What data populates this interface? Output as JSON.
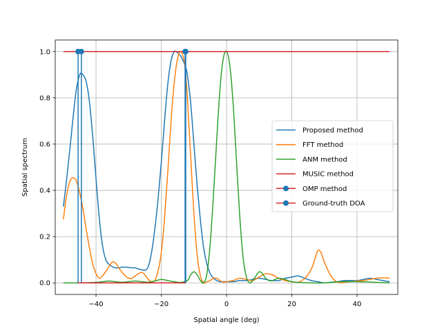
{
  "chart_data": {
    "type": "line",
    "title": "",
    "xlabel": "Spatial angle (deg)",
    "ylabel": "Spatial spectrum",
    "xlim": [
      -52.5,
      52.5
    ],
    "ylim": [
      -0.05,
      1.05
    ],
    "xticks": [
      -40,
      -20,
      0,
      20,
      40
    ],
    "yticks": [
      0.0,
      0.2,
      0.4,
      0.6,
      0.8,
      1.0
    ],
    "xtick_labels": [
      "−40",
      "−20",
      "0",
      "20",
      "40"
    ],
    "ytick_labels": [
      "0.0",
      "0.2",
      "0.4",
      "0.6",
      "0.8",
      "1.0"
    ],
    "grid": true,
    "legend_position": "center-right",
    "series": [
      {
        "name": "Proposed method",
        "color": "#1f77b4",
        "kind": "line",
        "x": [
          -50,
          -49,
          -48,
          -47,
          -46,
          -45,
          -44.5,
          -44,
          -43,
          -42,
          -41,
          -40,
          -39,
          -38,
          -37,
          -36,
          -35,
          -34,
          -33,
          -32,
          -31,
          -30,
          -29,
          -28,
          -27,
          -26,
          -25,
          -24,
          -23,
          -22,
          -21,
          -20,
          -19,
          -18,
          -17,
          -16,
          -15,
          -14,
          -13,
          -12.5,
          -12,
          -11,
          -10,
          -9,
          -8,
          -7,
          -6,
          -5,
          -4,
          -3,
          -2,
          -1,
          0,
          2,
          4,
          6,
          8,
          10,
          12,
          14,
          16,
          18,
          20,
          22,
          24,
          26,
          28,
          30,
          32,
          34,
          36,
          38,
          40,
          42,
          44,
          46,
          48,
          50
        ],
        "y": [
          0.33,
          0.45,
          0.58,
          0.72,
          0.84,
          0.9,
          0.905,
          0.9,
          0.87,
          0.78,
          0.63,
          0.45,
          0.28,
          0.16,
          0.1,
          0.08,
          0.07,
          0.065,
          0.065,
          0.068,
          0.068,
          0.067,
          0.065,
          0.065,
          0.06,
          0.057,
          0.055,
          0.07,
          0.13,
          0.23,
          0.36,
          0.52,
          0.7,
          0.86,
          0.96,
          1.0,
          0.995,
          0.98,
          0.95,
          0.93,
          0.9,
          0.78,
          0.6,
          0.42,
          0.27,
          0.15,
          0.08,
          0.04,
          0.02,
          0.01,
          0.005,
          0.005,
          0.005,
          0.005,
          0.01,
          0.01,
          0.015,
          0.02,
          0.015,
          0.01,
          0.01,
          0.02,
          0.025,
          0.03,
          0.02,
          0.01,
          0.005,
          0.0,
          0.003,
          0.005,
          0.01,
          0.01,
          0.01,
          0.015,
          0.02,
          0.015,
          0.01,
          0.005
        ]
      },
      {
        "name": "FFT method",
        "color": "#ff7f0e",
        "kind": "line",
        "x": [
          -50,
          -49,
          -48,
          -47,
          -46,
          -45,
          -44,
          -43,
          -42,
          -41,
          -40,
          -39,
          -38,
          -37,
          -36,
          -35,
          -34,
          -33,
          -32,
          -31,
          -30,
          -29,
          -28,
          -27,
          -26,
          -25,
          -24,
          -23,
          -22,
          -21,
          -20,
          -19,
          -18,
          -17,
          -16,
          -15,
          -14,
          -13,
          -12.5,
          -12,
          -11,
          -10,
          -9,
          -8,
          -7,
          -6,
          -5,
          -4,
          -3,
          -2,
          -1,
          0,
          2,
          4,
          6,
          8,
          10,
          12,
          14,
          16,
          18,
          20,
          22,
          24,
          26,
          27,
          28,
          29,
          30,
          32,
          34,
          36,
          38,
          40,
          42,
          44,
          46,
          48,
          50
        ],
        "y": [
          0.275,
          0.38,
          0.44,
          0.455,
          0.44,
          0.39,
          0.32,
          0.23,
          0.15,
          0.08,
          0.04,
          0.02,
          0.03,
          0.05,
          0.07,
          0.09,
          0.085,
          0.065,
          0.045,
          0.03,
          0.02,
          0.02,
          0.03,
          0.04,
          0.045,
          0.035,
          0.015,
          0.005,
          0.01,
          0.05,
          0.13,
          0.28,
          0.48,
          0.7,
          0.87,
          0.97,
          1.0,
          0.96,
          0.9,
          0.8,
          0.55,
          0.3,
          0.12,
          0.03,
          0.0,
          0.005,
          0.01,
          0.02,
          0.02,
          0.01,
          0.003,
          0.005,
          0.01,
          0.02,
          0.015,
          0.01,
          0.025,
          0.04,
          0.035,
          0.02,
          0.01,
          0.005,
          0.003,
          0.02,
          0.06,
          0.1,
          0.14,
          0.13,
          0.09,
          0.03,
          0.003,
          0.002,
          0.005,
          0.008,
          0.01,
          0.015,
          0.02,
          0.022,
          0.02
        ]
      },
      {
        "name": "ANM method",
        "color": "#2ca02c",
        "kind": "line",
        "x": [
          -50,
          -45,
          -40,
          -38,
          -36,
          -34,
          -32,
          -30,
          -28,
          -26,
          -24,
          -22,
          -20,
          -18,
          -16,
          -14,
          -12,
          -11,
          -10,
          -9,
          -8,
          -7,
          -6,
          -5,
          -4,
          -3,
          -2,
          -1,
          0,
          1,
          2,
          3,
          4,
          5,
          6,
          7,
          8,
          9,
          10,
          11,
          12,
          13,
          14,
          16,
          18,
          20,
          25,
          30,
          35,
          40,
          45,
          50
        ],
        "y": [
          0.0,
          0.0,
          0.002,
          0.005,
          0.008,
          0.005,
          0.003,
          0.005,
          0.008,
          0.005,
          0.003,
          0.008,
          0.015,
          0.01,
          0.005,
          0.002,
          0.01,
          0.035,
          0.048,
          0.035,
          0.01,
          0.0,
          0.04,
          0.17,
          0.38,
          0.62,
          0.84,
          0.97,
          1.0,
          0.94,
          0.78,
          0.54,
          0.3,
          0.12,
          0.03,
          0.0,
          0.01,
          0.03,
          0.048,
          0.04,
          0.02,
          0.01,
          0.01,
          0.02,
          0.015,
          0.005,
          0.0,
          0.0,
          0.005,
          0.005,
          0.003,
          0.0
        ]
      },
      {
        "name": "MUSIC method",
        "color": "#d62728",
        "kind": "line",
        "x": [
          -50,
          50
        ],
        "y": [
          1.0,
          1.0
        ]
      },
      {
        "name": "OMP method",
        "color": "#1f77b4",
        "kind": "stem",
        "baseline_color": "#d62728",
        "x": [
          -45.5,
          -12.5
        ],
        "y": [
          1.0,
          1.0
        ]
      },
      {
        "name": "Ground-truth DOA",
        "color": "#1f77b4",
        "kind": "stem",
        "baseline_color": "#d62728",
        "x": [
          -44.5,
          -12.7
        ],
        "y": [
          1.0,
          1.0
        ]
      }
    ]
  }
}
